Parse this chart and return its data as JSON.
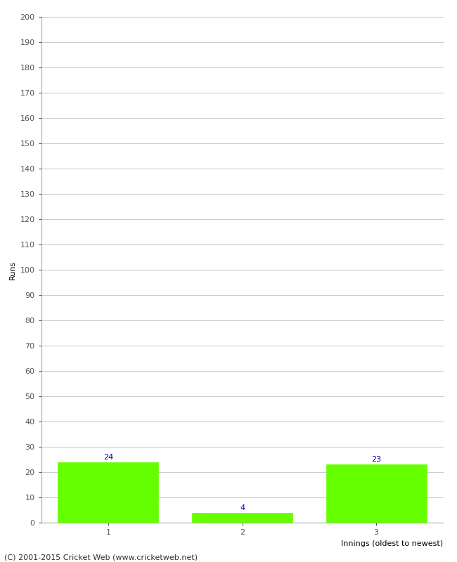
{
  "categories": [
    "1",
    "2",
    "3"
  ],
  "values": [
    24,
    4,
    23
  ],
  "bar_color": "#66ff00",
  "bar_edge_color": "#66ff00",
  "ylabel": "Runs",
  "xlabel": "Innings (oldest to newest)",
  "ylim": [
    0,
    200
  ],
  "yticks": [
    0,
    10,
    20,
    30,
    40,
    50,
    60,
    70,
    80,
    90,
    100,
    110,
    120,
    130,
    140,
    150,
    160,
    170,
    180,
    190,
    200
  ],
  "value_label_color": "#0000cc",
  "value_label_fontsize": 8,
  "axis_label_fontsize": 8,
  "tick_label_fontsize": 8,
  "grid_color": "#cccccc",
  "background_color": "#ffffff",
  "footer_text": "(C) 2001-2015 Cricket Web (www.cricketweb.net)",
  "footer_fontsize": 8,
  "bar_width": 0.75
}
